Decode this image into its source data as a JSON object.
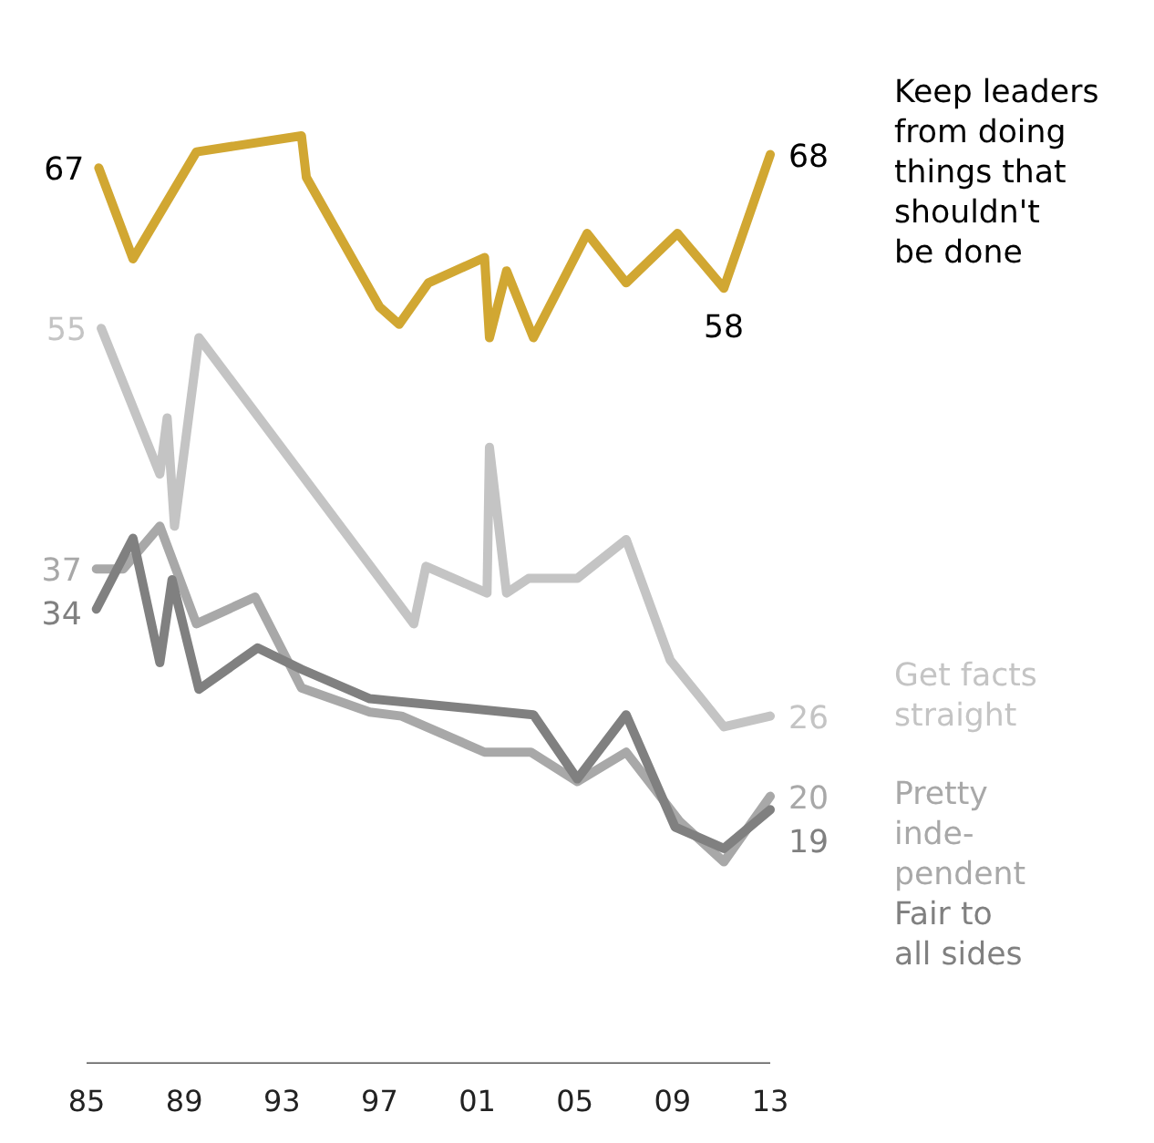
{
  "chart_data": {
    "type": "line",
    "x": [
      1985.5,
      1986.9,
      1989.5,
      1993.8,
      1994.0,
      1997.0,
      1997.8,
      1999.0,
      2001.3,
      2001.5,
      2002.2,
      2003.3,
      2005.5,
      2007.1,
      2009.2,
      2011.1,
      2013.0
    ],
    "series": [
      {
        "name": "Keep leaders\nfrom doing\nthings that\nshouldn't\nbe done",
        "color": "#d1a732",
        "values": [
          67,
          60.2,
          68.2,
          69.4,
          66.3,
          56.6,
          55.3,
          58.4,
          60.3,
          54.3,
          59.3,
          54.3,
          62.1,
          58.4,
          62.1,
          58,
          68
        ],
        "value_labels": [
          "67",
          null,
          null,
          null,
          null,
          null,
          null,
          null,
          null,
          null,
          null,
          null,
          null,
          null,
          null,
          "58",
          "68"
        ]
      },
      {
        "name": "Get facts\nstraight",
        "color": "#c4c4c4",
        "x": [
          1985.6,
          1988.0,
          1988.3,
          1988.6,
          1989.6,
          1998.4,
          1998.9,
          2001.4,
          2001.5,
          2002.2,
          2003.1,
          2005.1,
          2007.1,
          2008.9,
          2011.1,
          2013.0
        ],
        "values": [
          55,
          44.1,
          48.3,
          40.2,
          54.3,
          32.9,
          37.2,
          35.2,
          46.1,
          35.2,
          36.3,
          36.3,
          39.2,
          30.2,
          25.2,
          26
        ],
        "value_labels": [
          "55",
          null,
          null,
          null,
          null,
          null,
          null,
          null,
          null,
          null,
          null,
          null,
          null,
          null,
          null,
          "26"
        ]
      },
      {
        "name": "Pretty\ninde-\npendent",
        "color": "#a8a8a8",
        "x": [
          1985.4,
          1986.5,
          1988.0,
          1989.5,
          1991.9,
          1993.8,
          1996.6,
          1997.9,
          2001.3,
          2003.2,
          2005.1,
          2007.1,
          2009.3,
          2011.1,
          2013.0
        ],
        "values": [
          37,
          37,
          40.2,
          32.9,
          34.9,
          28.1,
          26.3,
          26.0,
          23.3,
          23.3,
          21.1,
          23.3,
          18.1,
          15.1,
          20
        ],
        "value_labels": [
          "37",
          null,
          null,
          null,
          null,
          null,
          null,
          null,
          null,
          null,
          null,
          null,
          null,
          null,
          "20"
        ]
      },
      {
        "name": "Fair to\nall sides",
        "color": "#808080",
        "x": [
          1985.4,
          1986.9,
          1988.0,
          1988.5,
          1989.6,
          1992.0,
          1993.8,
          1996.6,
          2003.3,
          2005.1,
          2007.1,
          2009.1,
          2011.1,
          2013.0
        ],
        "values": [
          34,
          39.3,
          30.0,
          36.2,
          28.0,
          31.1,
          29.5,
          27.3,
          26.1,
          21.3,
          26.1,
          17.7,
          16.1,
          19
        ],
        "value_labels": [
          "34",
          null,
          null,
          null,
          null,
          null,
          null,
          null,
          null,
          null,
          null,
          null,
          null,
          "19"
        ]
      }
    ],
    "xlim": [
      1985,
      2013
    ],
    "xticks": [
      {
        "value": 1985,
        "label": "85"
      },
      {
        "value": 1989,
        "label": "89"
      },
      {
        "value": 1993,
        "label": "93"
      },
      {
        "value": 1997,
        "label": "97"
      },
      {
        "value": 2001,
        "label": "01"
      },
      {
        "value": 2005,
        "label": "05"
      },
      {
        "value": 2009,
        "label": "09"
      },
      {
        "value": 2013,
        "label": "13"
      }
    ],
    "tick_labels": "x",
    "grid": false,
    "marker": "none",
    "line_style": "solid"
  }
}
